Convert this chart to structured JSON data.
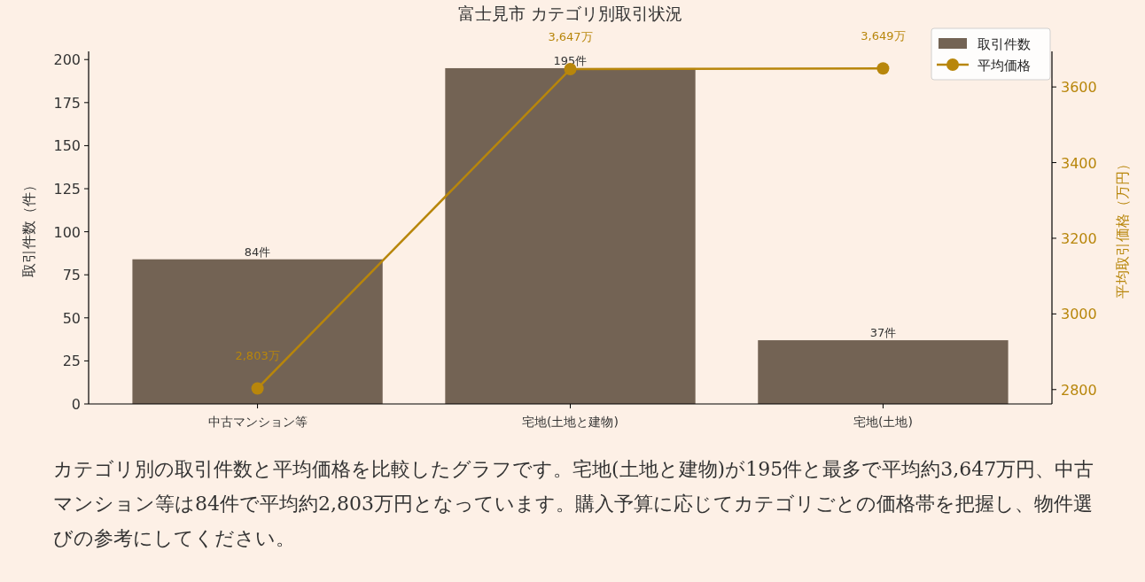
{
  "chart_data": {
    "type": "bar",
    "title": "富士見市 カテゴリ別取引状況",
    "categories": [
      "中古マンション等",
      "宅地(土地と建物)",
      "宅地(土地)"
    ],
    "series": [
      {
        "name": "取引件数",
        "color": "#736354",
        "values": [
          84,
          195,
          37
        ],
        "value_labels": [
          "84件",
          "195件",
          "37件"
        ]
      },
      {
        "name": "平均価格",
        "type": "line",
        "axis": "y2",
        "color": "#b8860b",
        "values": [
          2803,
          3647,
          3649
        ],
        "value_labels": [
          "2,803万",
          "3,647万",
          "3,649万"
        ],
        "marker": "circle",
        "line_style": "solid"
      }
    ],
    "ylabel": "取引件数（件）",
    "y2label": "平均取引価格（万円）",
    "ylim": [
      0,
      204.75
    ],
    "yticks": [
      0,
      25,
      50,
      75,
      100,
      125,
      150,
      175,
      200
    ],
    "y2lim": [
      2762,
      3694
    ],
    "y2ticks": [
      2800,
      3000,
      3200,
      3400,
      3600
    ],
    "legend": "top right",
    "grid": false,
    "annotations": [
      "カテゴリ別の取引件数と平均価格を比較したグラフです。宅地(土地と建物)が195件と最多で平均約3,647万円、中古マンション等は84件で平均約2,803万円となっています。購入予算に応じてカテゴリごとの価格帯を把握し、物件選びの参考にしてください。"
    ]
  }
}
